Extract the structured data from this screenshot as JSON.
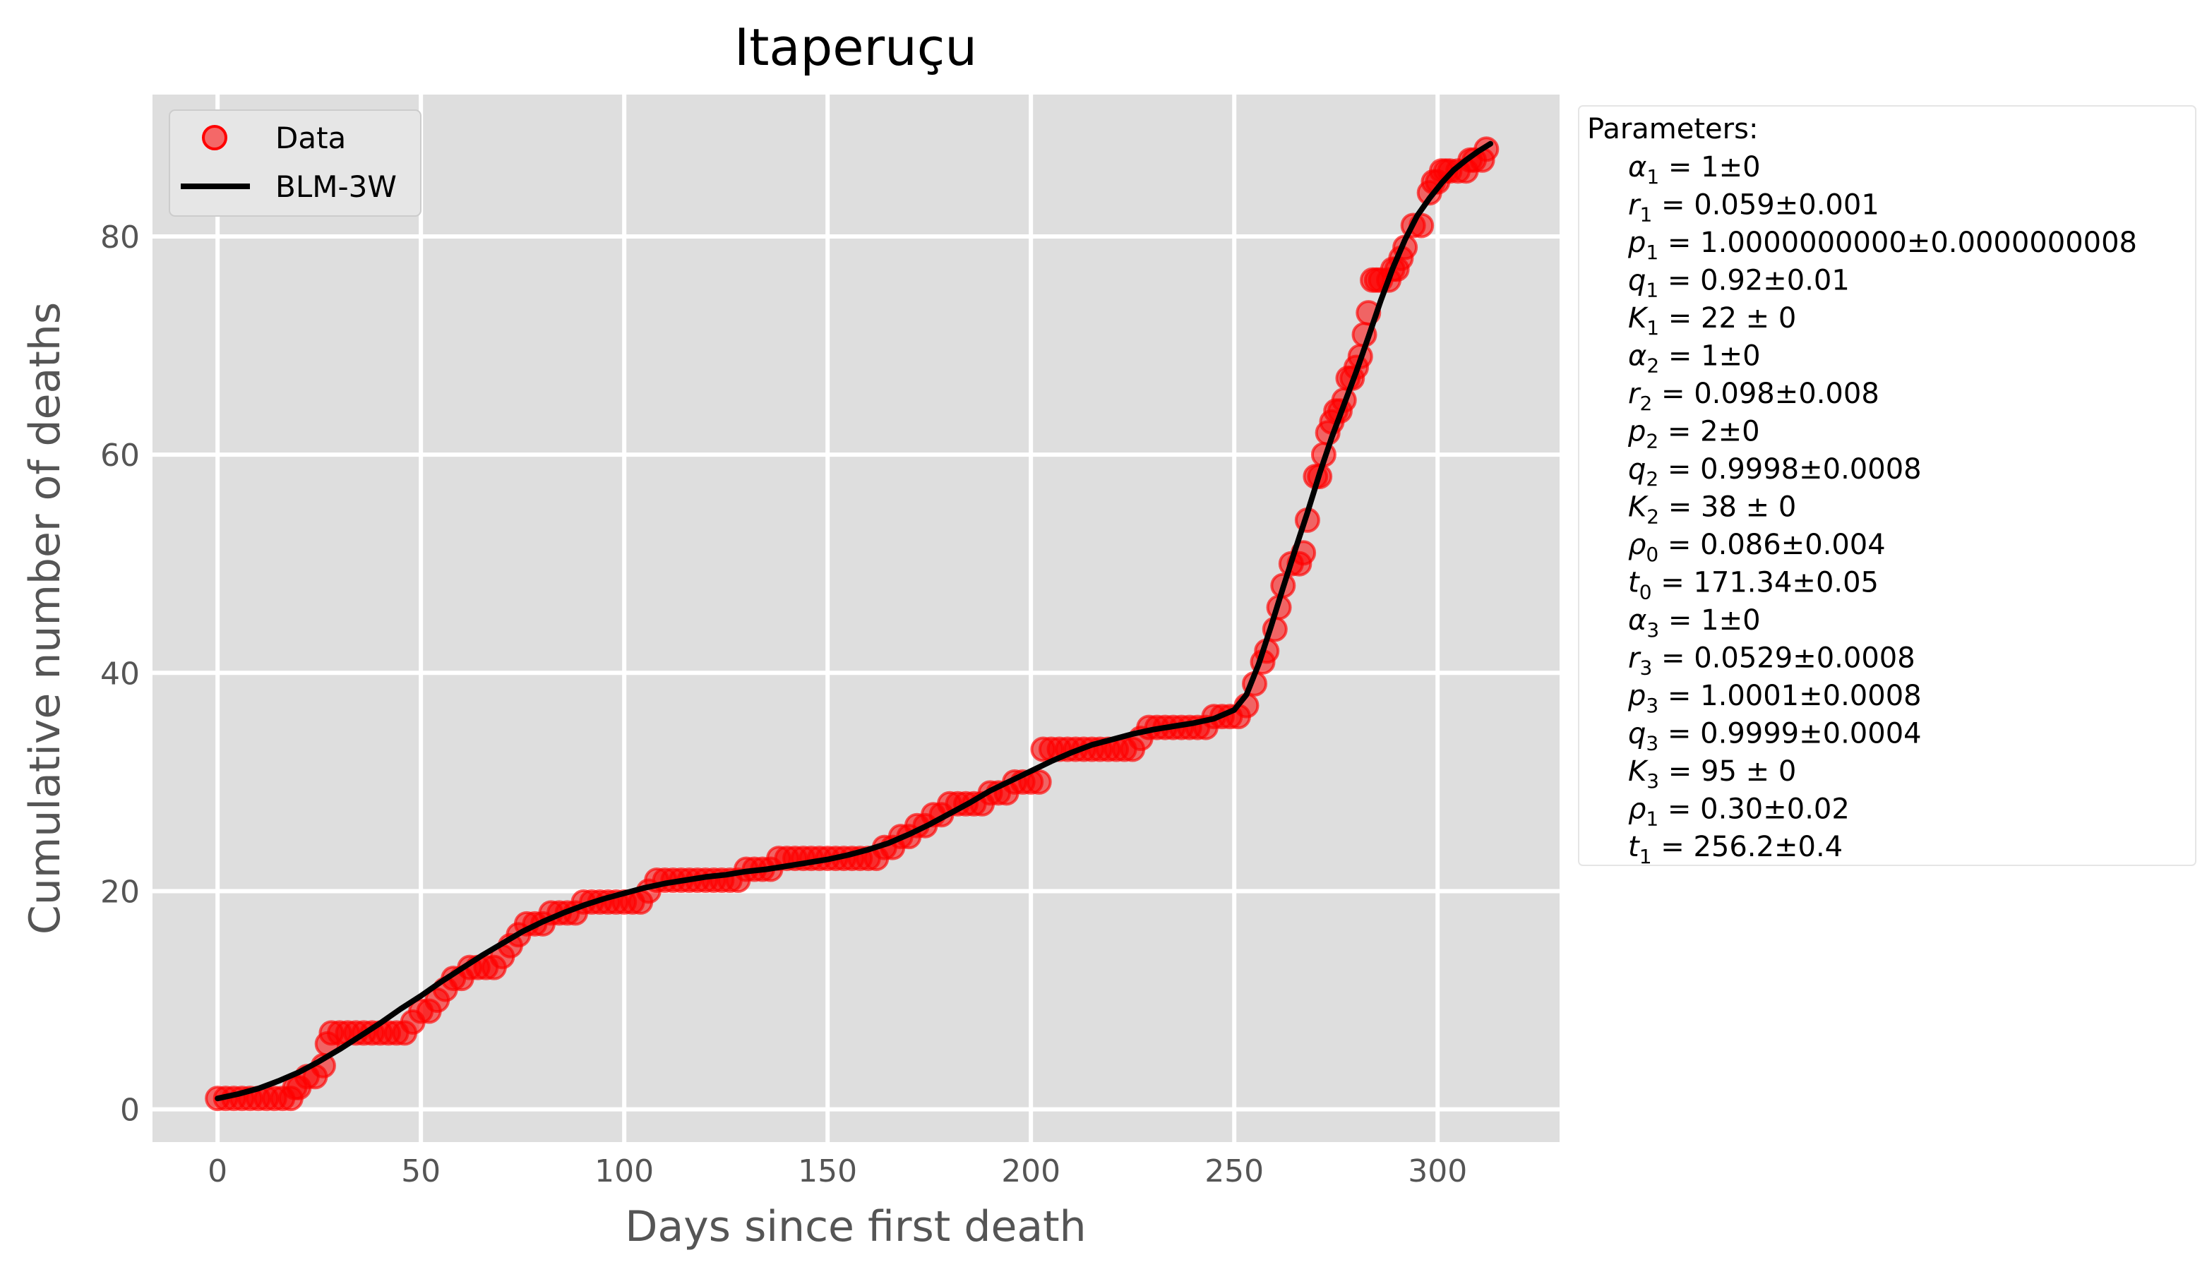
{
  "chart_data": {
    "type": "scatter",
    "title": "Itaperuçu",
    "xlabel": "Days since first death",
    "ylabel": "Cumulative number of deaths",
    "xlim": [
      -16,
      330
    ],
    "ylim": [
      -3,
      93
    ],
    "xticks": [
      0,
      50,
      100,
      150,
      200,
      250,
      300
    ],
    "yticks": [
      0,
      20,
      40,
      60,
      80
    ],
    "grid": true,
    "legend_position": "top-left",
    "series": [
      {
        "name": "Data",
        "kind": "points",
        "color": "#ff0000",
        "points": [
          [
            0,
            1
          ],
          [
            2,
            1
          ],
          [
            4,
            1
          ],
          [
            6,
            1
          ],
          [
            8,
            1
          ],
          [
            10,
            1
          ],
          [
            12,
            1
          ],
          [
            14,
            1
          ],
          [
            16,
            1
          ],
          [
            18,
            1
          ],
          [
            19,
            2
          ],
          [
            20,
            2
          ],
          [
            22,
            3
          ],
          [
            24,
            3
          ],
          [
            26,
            4
          ],
          [
            27,
            6
          ],
          [
            28,
            7
          ],
          [
            30,
            7
          ],
          [
            32,
            7
          ],
          [
            34,
            7
          ],
          [
            36,
            7
          ],
          [
            38,
            7
          ],
          [
            40,
            7
          ],
          [
            42,
            7
          ],
          [
            44,
            7
          ],
          [
            46,
            7
          ],
          [
            48,
            8
          ],
          [
            50,
            9
          ],
          [
            52,
            9
          ],
          [
            54,
            10
          ],
          [
            56,
            11
          ],
          [
            58,
            12
          ],
          [
            60,
            12
          ],
          [
            62,
            13
          ],
          [
            64,
            13
          ],
          [
            66,
            13
          ],
          [
            68,
            13
          ],
          [
            70,
            14
          ],
          [
            72,
            15
          ],
          [
            74,
            16
          ],
          [
            76,
            17
          ],
          [
            78,
            17
          ],
          [
            80,
            17
          ],
          [
            82,
            18
          ],
          [
            84,
            18
          ],
          [
            86,
            18
          ],
          [
            88,
            18
          ],
          [
            90,
            19
          ],
          [
            92,
            19
          ],
          [
            94,
            19
          ],
          [
            96,
            19
          ],
          [
            98,
            19
          ],
          [
            100,
            19
          ],
          [
            102,
            19
          ],
          [
            104,
            19
          ],
          [
            106,
            20
          ],
          [
            108,
            21
          ],
          [
            110,
            21
          ],
          [
            112,
            21
          ],
          [
            114,
            21
          ],
          [
            116,
            21
          ],
          [
            118,
            21
          ],
          [
            120,
            21
          ],
          [
            122,
            21
          ],
          [
            124,
            21
          ],
          [
            126,
            21
          ],
          [
            128,
            21
          ],
          [
            130,
            22
          ],
          [
            132,
            22
          ],
          [
            134,
            22
          ],
          [
            136,
            22
          ],
          [
            138,
            23
          ],
          [
            140,
            23
          ],
          [
            142,
            23
          ],
          [
            144,
            23
          ],
          [
            146,
            23
          ],
          [
            148,
            23
          ],
          [
            150,
            23
          ],
          [
            152,
            23
          ],
          [
            154,
            23
          ],
          [
            156,
            23
          ],
          [
            158,
            23
          ],
          [
            160,
            23
          ],
          [
            162,
            23
          ],
          [
            164,
            24
          ],
          [
            166,
            24
          ],
          [
            168,
            25
          ],
          [
            170,
            25
          ],
          [
            172,
            26
          ],
          [
            174,
            26
          ],
          [
            176,
            27
          ],
          [
            178,
            27
          ],
          [
            180,
            28
          ],
          [
            182,
            28
          ],
          [
            184,
            28
          ],
          [
            186,
            28
          ],
          [
            188,
            28
          ],
          [
            190,
            29
          ],
          [
            192,
            29
          ],
          [
            194,
            29
          ],
          [
            196,
            30
          ],
          [
            198,
            30
          ],
          [
            200,
            30
          ],
          [
            202,
            30
          ],
          [
            203,
            33
          ],
          [
            205,
            33
          ],
          [
            207,
            33
          ],
          [
            209,
            33
          ],
          [
            211,
            33
          ],
          [
            213,
            33
          ],
          [
            215,
            33
          ],
          [
            217,
            33
          ],
          [
            219,
            33
          ],
          [
            221,
            33
          ],
          [
            223,
            33
          ],
          [
            225,
            33
          ],
          [
            227,
            34
          ],
          [
            229,
            35
          ],
          [
            231,
            35
          ],
          [
            233,
            35
          ],
          [
            235,
            35
          ],
          [
            237,
            35
          ],
          [
            239,
            35
          ],
          [
            241,
            35
          ],
          [
            243,
            35
          ],
          [
            245,
            36
          ],
          [
            247,
            36
          ],
          [
            249,
            36
          ],
          [
            251,
            36
          ],
          [
            253,
            37
          ],
          [
            255,
            39
          ],
          [
            257,
            41
          ],
          [
            258,
            42
          ],
          [
            260,
            44
          ],
          [
            261,
            46
          ],
          [
            262,
            48
          ],
          [
            264,
            50
          ],
          [
            266,
            50
          ],
          [
            267,
            51
          ],
          [
            268,
            54
          ],
          [
            270,
            58
          ],
          [
            271,
            58
          ],
          [
            272,
            60
          ],
          [
            273,
            62
          ],
          [
            274,
            63
          ],
          [
            275,
            64
          ],
          [
            276,
            64
          ],
          [
            277,
            65
          ],
          [
            278,
            67
          ],
          [
            279,
            67
          ],
          [
            280,
            68
          ],
          [
            281,
            69
          ],
          [
            282,
            71
          ],
          [
            283,
            73
          ],
          [
            284,
            76
          ],
          [
            285,
            76
          ],
          [
            286,
            76
          ],
          [
            288,
            76
          ],
          [
            289,
            77
          ],
          [
            290,
            77
          ],
          [
            291,
            78
          ],
          [
            292,
            79
          ],
          [
            294,
            81
          ],
          [
            296,
            81
          ],
          [
            298,
            84
          ],
          [
            299,
            85
          ],
          [
            300,
            85
          ],
          [
            301,
            86
          ],
          [
            302,
            86
          ],
          [
            303,
            86
          ],
          [
            305,
            86
          ],
          [
            307,
            86
          ],
          [
            308,
            87
          ],
          [
            309,
            87
          ],
          [
            311,
            87
          ],
          [
            312,
            88
          ]
        ]
      },
      {
        "name": "BLM-3W",
        "kind": "line",
        "color": "#000000",
        "points": [
          [
            0,
            1
          ],
          [
            5,
            1.4
          ],
          [
            10,
            1.9
          ],
          [
            15,
            2.6
          ],
          [
            20,
            3.4
          ],
          [
            25,
            4.4
          ],
          [
            30,
            5.5
          ],
          [
            35,
            6.7
          ],
          [
            40,
            7.9
          ],
          [
            45,
            9.2
          ],
          [
            50,
            10.4
          ],
          [
            55,
            11.7
          ],
          [
            60,
            12.9
          ],
          [
            65,
            14.1
          ],
          [
            70,
            15.2
          ],
          [
            75,
            16.3
          ],
          [
            80,
            17.2
          ],
          [
            85,
            18
          ],
          [
            90,
            18.7
          ],
          [
            95,
            19.3
          ],
          [
            100,
            19.8
          ],
          [
            105,
            20.3
          ],
          [
            110,
            20.7
          ],
          [
            115,
            21
          ],
          [
            120,
            21.3
          ],
          [
            125,
            21.5
          ],
          [
            130,
            21.8
          ],
          [
            135,
            22
          ],
          [
            140,
            22.3
          ],
          [
            145,
            22.6
          ],
          [
            150,
            22.9
          ],
          [
            155,
            23.3
          ],
          [
            160,
            23.8
          ],
          [
            165,
            24.4
          ],
          [
            170,
            25.2
          ],
          [
            175,
            26.1
          ],
          [
            180,
            27.1
          ],
          [
            185,
            28.1
          ],
          [
            190,
            29.2
          ],
          [
            195,
            30.1
          ],
          [
            200,
            31
          ],
          [
            205,
            31.9
          ],
          [
            210,
            32.7
          ],
          [
            215,
            33.4
          ],
          [
            220,
            33.9
          ],
          [
            225,
            34.4
          ],
          [
            230,
            34.8
          ],
          [
            235,
            35.1
          ],
          [
            240,
            35.4
          ],
          [
            245,
            35.8
          ],
          [
            250,
            36.6
          ],
          [
            253,
            38
          ],
          [
            256,
            40.8
          ],
          [
            259,
            44.2
          ],
          [
            262,
            47.8
          ],
          [
            265,
            51.3
          ],
          [
            268,
            54.7
          ],
          [
            271,
            58.3
          ],
          [
            274,
            61.6
          ],
          [
            277,
            64.6
          ],
          [
            280,
            67.6
          ],
          [
            283,
            70.8
          ],
          [
            286,
            74.1
          ],
          [
            289,
            77.1
          ],
          [
            292,
            79.7
          ],
          [
            295,
            81.9
          ],
          [
            298,
            83.5
          ],
          [
            301,
            84.9
          ],
          [
            304,
            86.1
          ],
          [
            307,
            87
          ],
          [
            310,
            87.8
          ],
          [
            313,
            88.5
          ]
        ]
      }
    ],
    "legend": {
      "entries": [
        "Data",
        "BLM-3W"
      ]
    }
  },
  "parameters": {
    "heading": "Parameters:",
    "lines": [
      {
        "sym": "α",
        "sub": "1",
        "val": " = 1±0"
      },
      {
        "sym": "r",
        "sub": "1",
        "val": " = 0.059±0.001"
      },
      {
        "sym": "p",
        "sub": "1",
        "val": " = 1.0000000000±0.0000000008"
      },
      {
        "sym": "q",
        "sub": "1",
        "val": " = 0.92±0.01"
      },
      {
        "sym": "K",
        "sub": "1",
        "val": " = 22 ± 0"
      },
      {
        "sym": "α",
        "sub": "2",
        "val": " = 1±0"
      },
      {
        "sym": "r",
        "sub": "2",
        "val": " = 0.098±0.008"
      },
      {
        "sym": "p",
        "sub": "2",
        "val": " = 2±0"
      },
      {
        "sym": "q",
        "sub": "2",
        "val": " = 0.9998±0.0008"
      },
      {
        "sym": "K",
        "sub": "2",
        "val": " = 38 ± 0"
      },
      {
        "sym": "ρ",
        "sub": "0",
        "val": " = 0.086±0.004"
      },
      {
        "sym": "t",
        "sub": "0",
        "val": " = 171.34±0.05"
      },
      {
        "sym": "α",
        "sub": "3",
        "val": " = 1±0"
      },
      {
        "sym": "r",
        "sub": "3",
        "val": " = 0.0529±0.0008"
      },
      {
        "sym": "p",
        "sub": "3",
        "val": " = 1.0001±0.0008"
      },
      {
        "sym": "q",
        "sub": "3",
        "val": " = 0.9999±0.0004"
      },
      {
        "sym": "K",
        "sub": "3",
        "val": " = 95 ± 0"
      },
      {
        "sym": "ρ",
        "sub": "1",
        "val": " = 0.30±0.02"
      },
      {
        "sym": "t",
        "sub": "1",
        "val": " = 256.2±0.4"
      }
    ]
  },
  "colors": {
    "plot_background": "#dedede",
    "grid": "#ffffff",
    "data_marker": "#ff0000",
    "fit_line": "#000000",
    "axis_text": "#555555"
  }
}
